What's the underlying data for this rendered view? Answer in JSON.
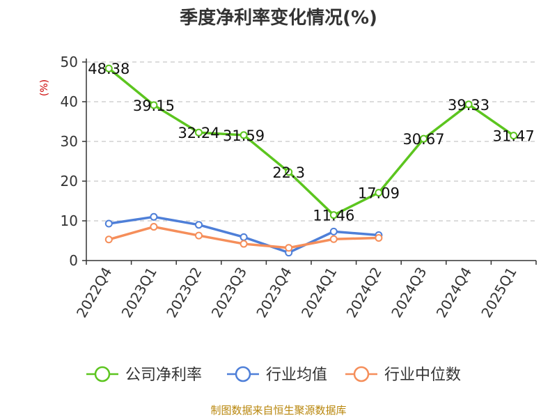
{
  "chart_data": {
    "type": "line",
    "title": "季度净利率变化情况(%)",
    "ylabel": "(%)",
    "xlabel": "",
    "ylim": [
      0,
      50
    ],
    "yticks": [
      0,
      10,
      20,
      30,
      40,
      50
    ],
    "grid": true,
    "legend_position": "bottom",
    "categories": [
      "2022Q4",
      "2023Q1",
      "2023Q2",
      "2023Q3",
      "2023Q4",
      "2024Q1",
      "2024Q2",
      "2024Q3",
      "2024Q4",
      "2025Q1"
    ],
    "series": [
      {
        "name": "公司净利率",
        "color": "#5cc51f",
        "values": [
          48.38,
          39.15,
          32.24,
          31.59,
          22.3,
          11.46,
          17.09,
          30.67,
          39.33,
          31.47
        ],
        "labels": [
          "48.38",
          "39.15",
          "32.24",
          "31.59",
          "22.3",
          "11.46",
          "17.09",
          "30.67",
          "39.33",
          "31.47"
        ]
      },
      {
        "name": "行业均值",
        "color": "#4e7fd8",
        "values": [
          9.3,
          11.0,
          9.0,
          5.9,
          2.0,
          7.3,
          6.4,
          null,
          null,
          null
        ]
      },
      {
        "name": "行业中位数",
        "color": "#f58e5a",
        "values": [
          5.3,
          8.5,
          6.3,
          4.2,
          3.2,
          5.4,
          5.7,
          null,
          null,
          null
        ]
      }
    ]
  },
  "source": "制图数据来自恒生聚源数据库"
}
